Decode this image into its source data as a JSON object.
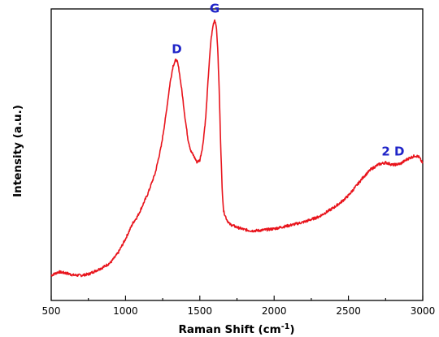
{
  "chart_data": {
    "type": "line",
    "title": "",
    "xlabel": "Raman Shift (cm",
    "xlabel_sup": "-1",
    "xlabel_end": ")",
    "ylabel": "Intensity (a.u.)",
    "xlim": [
      500,
      3000
    ],
    "ylim": [
      0,
      100
    ],
    "x_ticks": [
      500,
      1000,
      1500,
      2000,
      2500,
      3000
    ],
    "x_tick_labels": [
      "500",
      "1000",
      "1500",
      "2000",
      "2500",
      "3000"
    ],
    "y_tick_labels": [],
    "grid": false,
    "legend": "none",
    "colors": {
      "line": "#e8141c",
      "annotation": "#1f24c8",
      "axis": "#000000"
    },
    "annotations": [
      {
        "text": "D",
        "x": 1345,
        "y": 82
      },
      {
        "text": "G",
        "x": 1600,
        "y": 96
      },
      {
        "text": "2 D",
        "x": 2800,
        "y": 47
      }
    ],
    "series": [
      {
        "x": [
          500,
          550,
          600,
          650,
          700,
          750,
          800,
          850,
          900,
          950,
          1000,
          1050,
          1080,
          1100,
          1150,
          1200,
          1240,
          1270,
          1300,
          1320,
          1340,
          1350,
          1360,
          1380,
          1400,
          1420,
          1440,
          1460,
          1480,
          1500,
          1520,
          1540,
          1560,
          1575,
          1590,
          1600,
          1610,
          1620,
          1630,
          1640,
          1650,
          1660,
          1680,
          1700,
          1750,
          1800,
          1850,
          1900,
          1950,
          2000,
          2100,
          2200,
          2300,
          2400,
          2450,
          2500,
          2550,
          2600,
          2650,
          2700,
          2750,
          2800,
          2850,
          2900,
          2950,
          2975,
          3000
        ],
        "y": [
          8.6,
          9.8,
          9.4,
          8.7,
          8.6,
          9.0,
          10.2,
          11.4,
          13.0,
          16.3,
          21.1,
          26.6,
          28.8,
          30.9,
          36.6,
          43.7,
          52.8,
          62.9,
          74.7,
          80.5,
          82.7,
          81.6,
          79.1,
          71.6,
          62.9,
          55.4,
          51.2,
          49.5,
          47.5,
          48.1,
          53.2,
          62.9,
          79.1,
          89.4,
          94.6,
          96.3,
          94.5,
          86.9,
          72.7,
          54.2,
          38.5,
          30.6,
          27.9,
          26.2,
          25.1,
          24.3,
          23.9,
          24.0,
          24.3,
          24.6,
          25.7,
          26.9,
          28.7,
          31.8,
          33.7,
          36.0,
          39.1,
          42.3,
          44.9,
          46.6,
          47.3,
          46.5,
          46.9,
          48.6,
          49.7,
          49.2,
          47.0
        ]
      }
    ]
  }
}
